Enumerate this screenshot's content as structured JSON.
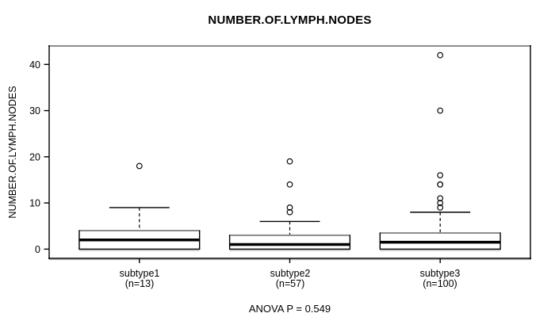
{
  "title": "NUMBER.OF.LYMPH.NODES",
  "colors": {
    "line": "#000000",
    "frame_top": "#8c8c8c",
    "box_top_edge": "#8c8c8c",
    "shadow": "#aaaaaa",
    "background": "#ffffff",
    "text": "#000000"
  },
  "chart_data": {
    "type": "boxplot",
    "title": "NUMBER.OF.LYMPH.NODES",
    "ylabel": "NUMBER.OF.LYMPH.NODES",
    "annotation": "ANOVA P = 0.549",
    "yticks": [
      0,
      10,
      20,
      30,
      40
    ],
    "ylim": [
      -2,
      44
    ],
    "xlim": [
      0.4,
      3.6
    ],
    "box_width": 0.8,
    "cap_width": 0.4,
    "grid": "off",
    "legend_position": "none",
    "groups": [
      {
        "label": "subtype1",
        "n_label": "(n=13)",
        "n": 13,
        "position": 1,
        "q1": 0,
        "median": 2,
        "q3": 4,
        "whisker_low": 0,
        "whisker_high": 9,
        "outliers": [
          18
        ]
      },
      {
        "label": "subtype2",
        "n_label": "(n=57)",
        "n": 57,
        "position": 2,
        "q1": 0,
        "median": 1,
        "q3": 3,
        "whisker_low": 0,
        "whisker_high": 6,
        "outliers": [
          8,
          9,
          14,
          19
        ]
      },
      {
        "label": "subtype3",
        "n_label": "(n=100)",
        "n": 100,
        "position": 3,
        "q1": 0,
        "median": 1.5,
        "q3": 3.5,
        "whisker_low": 0,
        "whisker_high": 8,
        "outliers": [
          9,
          10,
          11,
          14,
          14,
          16,
          30,
          42
        ]
      }
    ]
  }
}
